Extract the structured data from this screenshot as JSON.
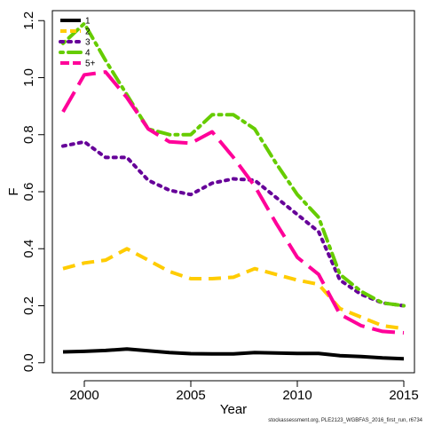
{
  "chart_data": {
    "type": "line",
    "title": "",
    "xlabel": "Year",
    "ylabel": "F",
    "xlim": [
      1998.5,
      2015.5
    ],
    "ylim": [
      -0.035,
      1.235
    ],
    "x_ticks": [
      2000,
      2005,
      2010,
      2015
    ],
    "x_tick_labels": [
      "2000",
      "2005",
      "2010",
      "2015"
    ],
    "y_ticks": [
      0.0,
      0.2,
      0.4,
      0.6,
      0.8,
      1.0,
      1.2
    ],
    "y_tick_labels": [
      "0.0",
      "0.2",
      "0.4",
      "0.6",
      "0.8",
      "1.0",
      "1.2"
    ],
    "grid": false,
    "legend_position": "top-left",
    "x": [
      1999,
      2000,
      2001,
      2002,
      2003,
      2004,
      2005,
      2006,
      2007,
      2008,
      2009,
      2010,
      2011,
      2012,
      2013,
      2014,
      2015
    ],
    "series": [
      {
        "name": "1",
        "color": "#000000",
        "dash": "solid",
        "values": [
          0.038,
          0.04,
          0.043,
          0.048,
          0.042,
          0.036,
          0.032,
          0.031,
          0.031,
          0.036,
          0.034,
          0.033,
          0.033,
          0.025,
          0.022,
          0.017,
          0.014
        ]
      },
      {
        "name": "2",
        "color": "#ffcc00",
        "dash": "dashed",
        "values": [
          0.33,
          0.35,
          0.36,
          0.4,
          0.36,
          0.32,
          0.295,
          0.295,
          0.3,
          0.33,
          0.31,
          0.29,
          0.275,
          0.19,
          0.16,
          0.13,
          0.12
        ]
      },
      {
        "name": "3",
        "color": "#660099",
        "dash": "dotted",
        "values": [
          0.76,
          0.775,
          0.72,
          0.72,
          0.64,
          0.605,
          0.59,
          0.63,
          0.645,
          0.64,
          0.58,
          0.52,
          0.46,
          0.29,
          0.24,
          0.21,
          0.2
        ]
      },
      {
        "name": "4",
        "color": "#66cc00",
        "dash": "dotdash",
        "values": [
          1.12,
          1.19,
          1.06,
          0.94,
          0.82,
          0.8,
          0.8,
          0.87,
          0.87,
          0.82,
          0.7,
          0.59,
          0.51,
          0.31,
          0.25,
          0.21,
          0.2
        ]
      },
      {
        "name": "5+",
        "color": "#ff0099",
        "dash": "longdash",
        "values": [
          0.88,
          1.01,
          1.02,
          0.93,
          0.82,
          0.775,
          0.77,
          0.81,
          0.72,
          0.62,
          0.49,
          0.37,
          0.31,
          0.17,
          0.13,
          0.11,
          0.105
        ]
      }
    ]
  },
  "footer": "stockassessment.org, PLE2123_WGBFAS_2016_first_run, r6734"
}
